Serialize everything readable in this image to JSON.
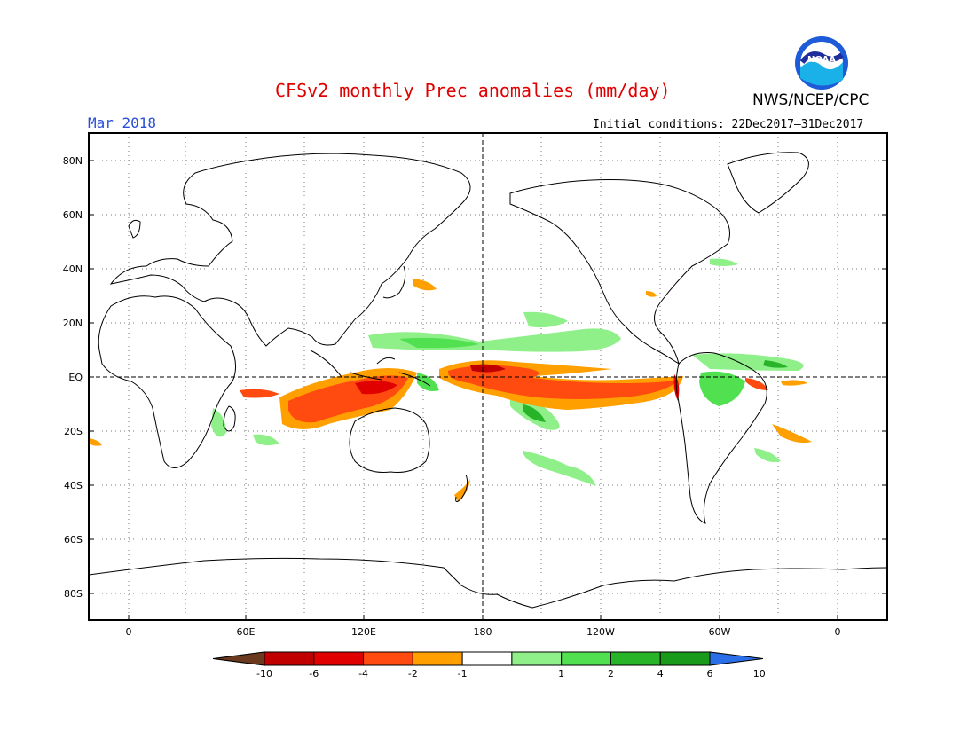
{
  "header": {
    "title": "CFSv2 monthly Prec anomalies (mm/day)",
    "organization": "NWS/NCEP/CPC",
    "month": "Mar 2018",
    "initial_conditions": "Initial conditions: 22Dec2017–31Dec2017"
  },
  "logo": {
    "text": "NOAA"
  },
  "axes": {
    "lat_labels": [
      "80N",
      "60N",
      "40N",
      "20N",
      "EQ",
      "20S",
      "40S",
      "60S",
      "80S"
    ],
    "lon_labels": [
      "0",
      "60E",
      "120E",
      "180",
      "120W",
      "60W",
      "0"
    ]
  },
  "colorbar": {
    "labels": [
      "-10",
      "-6",
      "-4",
      "-2",
      "-1",
      "1",
      "2",
      "4",
      "6",
      "10"
    ],
    "colors": [
      "#6b3a1e",
      "#c00000",
      "#e00000",
      "#ff4a10",
      "#ff9f00",
      "#ffffff",
      "#8ff08a",
      "#50e050",
      "#28b428",
      "#1a9a1a",
      "#2a6ee8"
    ]
  },
  "colors": {
    "title": "#e00000",
    "month": "#2a4fd6",
    "wet_light": "#8ff08a",
    "wet_mid": "#50e050",
    "dry_light": "#ff9f00",
    "dry_mid": "#ff4a10",
    "dry_strong": "#e00000"
  }
}
